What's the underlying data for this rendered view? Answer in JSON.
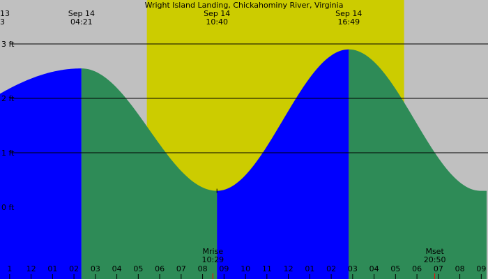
{
  "chart_data": {
    "type": "area",
    "title": "Wright Island Landing, Chickahominy River, Virginia",
    "corner_labels": [
      "13",
      "3"
    ],
    "y_unit": "ft",
    "ylim": [
      -0.6,
      4.0
    ],
    "xlim_hours": [
      0.55,
      23.25
    ],
    "y_tick_labels": [
      {
        "value": 3,
        "label": "3 ft"
      },
      {
        "value": 2,
        "label": "2 ft"
      },
      {
        "value": 1,
        "label": "1 ft"
      },
      {
        "value": 0,
        "label": "0 ft"
      }
    ],
    "hour_labels": [
      "1",
      "12",
      "01",
      "02",
      "03",
      "04",
      "05",
      "06",
      "07",
      "08",
      "09",
      "10",
      "11",
      "12",
      "01",
      "02",
      "03",
      "04",
      "05",
      "06",
      "07",
      "08",
      "09"
    ],
    "tide_extremes": [
      {
        "type": "high",
        "date": "Sep 14",
        "time": "04:21",
        "hour": 4.35,
        "height": 2.55
      },
      {
        "type": "low",
        "date": "Sep 14",
        "time": "10:40",
        "hour": 10.67,
        "height": 0.3
      },
      {
        "type": "high",
        "date": "Sep 14",
        "time": "16:49",
        "hour": 16.82,
        "height": 2.9
      }
    ],
    "start_level": {
      "hour": 0.55,
      "height": 0.4
    },
    "end_level": {
      "hour": 23.25,
      "height": 0.85
    },
    "daylight": {
      "start_hour": 7.4,
      "end_hour": 19.4
    },
    "moon_events": [
      {
        "label": "Mrise",
        "time": "10:29",
        "hour": 10.48
      },
      {
        "label": "Mset",
        "time": "20:50",
        "hour": 20.83
      }
    ],
    "colors": {
      "night": "#c0c0c0",
      "day": "#cccc00",
      "rising": "#0000ff",
      "falling": "#2e8b57",
      "gridline": "#000000",
      "moon_tick": "#ff0000"
    }
  }
}
